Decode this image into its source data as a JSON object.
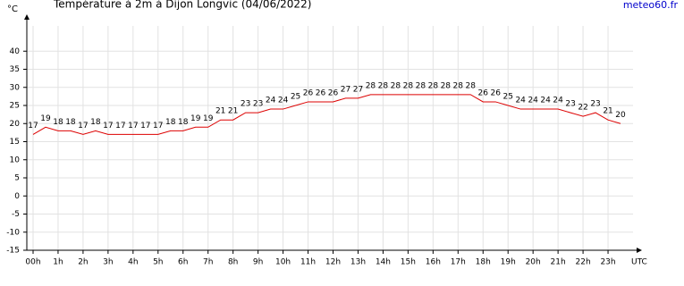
{
  "chart_data": {
    "type": "line",
    "title": "Température à 2m à Dijon Longvic (04/06/2022)",
    "y_label": "°C",
    "x_label": "UTC",
    "source": "meteo60.fr",
    "x": [
      0,
      0.5,
      1,
      1.5,
      2,
      2.5,
      3,
      3.5,
      4,
      4.5,
      5,
      5.5,
      6,
      6.5,
      7,
      7.5,
      8,
      8.5,
      9,
      9.5,
      10,
      10.5,
      11,
      11.5,
      12,
      12.5,
      13,
      13.5,
      14,
      14.5,
      15,
      15.5,
      16,
      16.5,
      17,
      17.5,
      18,
      18.5,
      19,
      19.5,
      20,
      20.5,
      21,
      21.5,
      22,
      22.5,
      23,
      23.5
    ],
    "series": [
      {
        "name": "Température",
        "color": "#dd0000",
        "values": [
          17,
          19,
          18,
          18,
          17,
          18,
          17,
          17,
          17,
          17,
          17,
          18,
          18,
          19,
          19,
          21,
          21,
          23,
          23,
          24,
          24,
          25,
          26,
          26,
          26,
          27,
          27,
          28,
          28,
          28,
          28,
          28,
          28,
          28,
          28,
          28,
          26,
          26,
          25,
          24,
          24,
          24,
          24,
          23,
          22,
          23,
          21,
          20
        ]
      }
    ],
    "xlim": [
      -0.25,
      24
    ],
    "xticks": [
      {
        "value": 0,
        "label": "00h"
      },
      {
        "value": 1,
        "label": "1h"
      },
      {
        "value": 2,
        "label": "2h"
      },
      {
        "value": 3,
        "label": "3h"
      },
      {
        "value": 4,
        "label": "4h"
      },
      {
        "value": 5,
        "label": "5h"
      },
      {
        "value": 6,
        "label": "6h"
      },
      {
        "value": 7,
        "label": "7h"
      },
      {
        "value": 8,
        "label": "8h"
      },
      {
        "value": 9,
        "label": "9h"
      },
      {
        "value": 10,
        "label": "10h"
      },
      {
        "value": 11,
        "label": "11h"
      },
      {
        "value": 12,
        "label": "12h"
      },
      {
        "value": 13,
        "label": "13h"
      },
      {
        "value": 14,
        "label": "14h"
      },
      {
        "value": 15,
        "label": "15h"
      },
      {
        "value": 16,
        "label": "16h"
      },
      {
        "value": 17,
        "label": "17h"
      },
      {
        "value": 18,
        "label": "18h"
      },
      {
        "value": 19,
        "label": "19h"
      },
      {
        "value": 20,
        "label": "20h"
      },
      {
        "value": 21,
        "label": "21h"
      },
      {
        "value": 22,
        "label": "22h"
      },
      {
        "value": 23,
        "label": "23h"
      }
    ],
    "ylim": [
      -15,
      45
    ],
    "yticks": [
      -15,
      -10,
      -5,
      0,
      5,
      10,
      15,
      20,
      25,
      30,
      35,
      40
    ],
    "grid": true
  }
}
